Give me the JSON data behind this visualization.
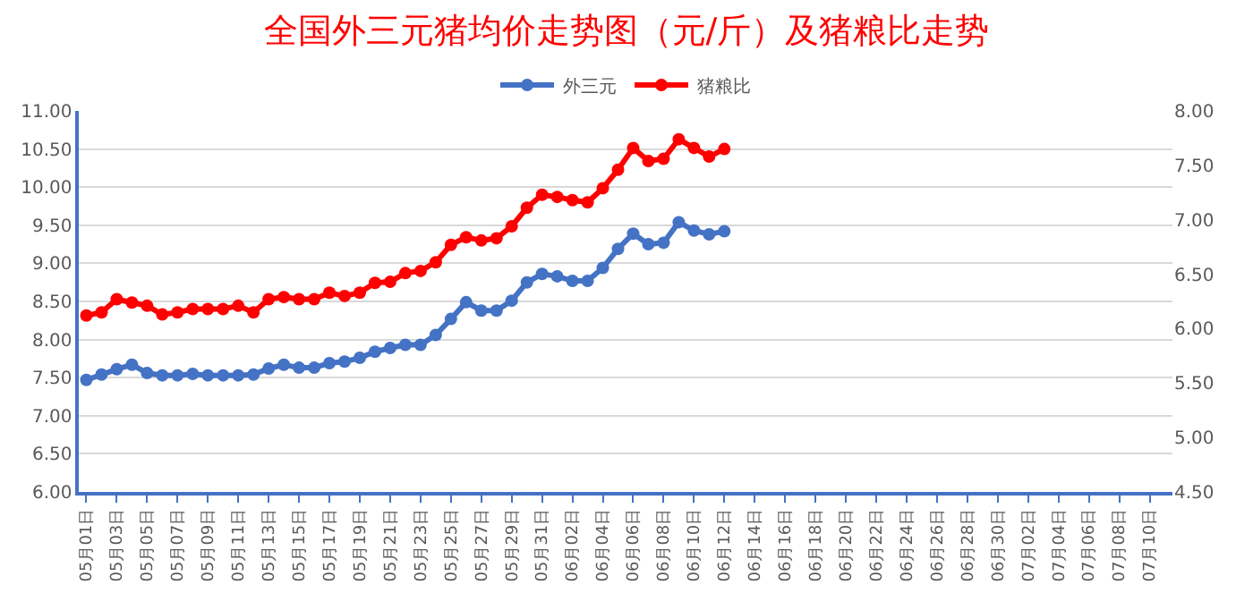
{
  "chart_data": {
    "type": "line",
    "title": "全国外三元猪均价走势图（元/斤）及猪粮比走势",
    "categories": [
      "05月01日",
      null,
      "05月03日",
      null,
      "05月05日",
      null,
      "05月07日",
      null,
      "05月09日",
      null,
      "05月11日",
      null,
      "05月13日",
      null,
      "05月15日",
      null,
      "05月17日",
      null,
      "05月19日",
      null,
      "05月21日",
      null,
      "05月23日",
      null,
      "05月25日",
      null,
      "05月27日",
      null,
      "05月29日",
      null,
      "05月31日",
      null,
      "06月02日",
      null,
      "06月04日",
      null,
      "06月06日",
      null,
      "06月08日",
      null,
      "06月10日",
      null,
      "06月12日",
      null,
      "06月14日",
      null,
      "06月16日",
      null,
      "06月18日",
      null,
      "06月20日",
      null,
      "06月22日",
      null,
      "06月24日",
      null,
      "06月26日",
      null,
      "06月28日",
      null,
      "06月30日",
      null,
      "07月02日",
      null,
      "07月04日",
      null,
      "07月06日",
      null,
      "07月08日",
      null,
      "07月10日",
      null
    ],
    "series": [
      {
        "name": "外三元",
        "color": "#4472c4",
        "values": [
          7.47,
          7.54,
          7.61,
          7.67,
          7.56,
          7.53,
          7.53,
          7.55,
          7.53,
          7.53,
          7.53,
          7.54,
          7.62,
          7.67,
          7.63,
          7.63,
          7.69,
          7.71,
          7.76,
          7.84,
          7.89,
          7.93,
          7.93,
          8.06,
          8.27,
          8.49,
          8.38,
          8.38,
          8.51,
          8.75,
          8.86,
          8.83,
          8.77,
          8.77,
          8.94,
          9.19,
          9.39,
          9.25,
          9.27,
          9.54,
          9.43,
          9.38,
          9.42,
          null,
          null,
          null,
          null,
          null,
          null,
          null,
          null,
          null,
          null,
          null,
          null,
          null,
          null,
          null,
          null,
          null,
          null,
          null,
          null,
          null,
          null,
          null,
          null,
          null,
          null,
          null,
          null,
          null
        ]
      },
      {
        "name": "猪粮比",
        "color": "#ff0000",
        "axis": "y2",
        "values": [
          6.12,
          6.15,
          6.27,
          6.24,
          6.21,
          6.13,
          6.15,
          6.18,
          6.18,
          6.18,
          6.21,
          6.15,
          6.27,
          6.29,
          6.27,
          6.27,
          6.33,
          6.3,
          6.33,
          6.42,
          6.43,
          6.51,
          6.53,
          6.61,
          6.77,
          6.84,
          6.81,
          6.83,
          6.94,
          7.11,
          7.23,
          7.21,
          7.18,
          7.16,
          7.29,
          7.46,
          7.66,
          7.54,
          7.56,
          7.74,
          7.66,
          7.58,
          7.65,
          null,
          null,
          null,
          null,
          null,
          null,
          null,
          null,
          null,
          null,
          null,
          null,
          null,
          null,
          null,
          null,
          null,
          null,
          null,
          null,
          null,
          null,
          null,
          null,
          null,
          null,
          null,
          null,
          null
        ]
      }
    ],
    "ylim": [
      6,
      11
    ],
    "yticks": [
      {
        "value": 6,
        "label": "6.00"
      },
      {
        "value": 6.5,
        "label": "6.50"
      },
      {
        "value": 7,
        "label": "7.00"
      },
      {
        "value": 7.5,
        "label": "7.50"
      },
      {
        "value": 8,
        "label": "8.00"
      },
      {
        "value": 8.5,
        "label": "8.50"
      },
      {
        "value": 9,
        "label": "9.00"
      },
      {
        "value": 9.5,
        "label": "9.50"
      },
      {
        "value": 10,
        "label": "10.00"
      },
      {
        "value": 10.5,
        "label": "10.50"
      },
      {
        "value": 11,
        "label": "11.00"
      }
    ],
    "y2lim": [
      4.5,
      8
    ],
    "y2ticks": [
      {
        "value": 4.5,
        "label": "4.50"
      },
      {
        "value": 5,
        "label": "5.00"
      },
      {
        "value": 5.5,
        "label": "5.50"
      },
      {
        "value": 6,
        "label": "6.00"
      },
      {
        "value": 6.5,
        "label": "6.50"
      },
      {
        "value": 7,
        "label": "7.00"
      },
      {
        "value": 7.5,
        "label": "7.50"
      },
      {
        "value": 8,
        "label": "8.00"
      }
    ],
    "grid": "y",
    "legend": "top",
    "marker": "circle",
    "line_style": "solid"
  }
}
